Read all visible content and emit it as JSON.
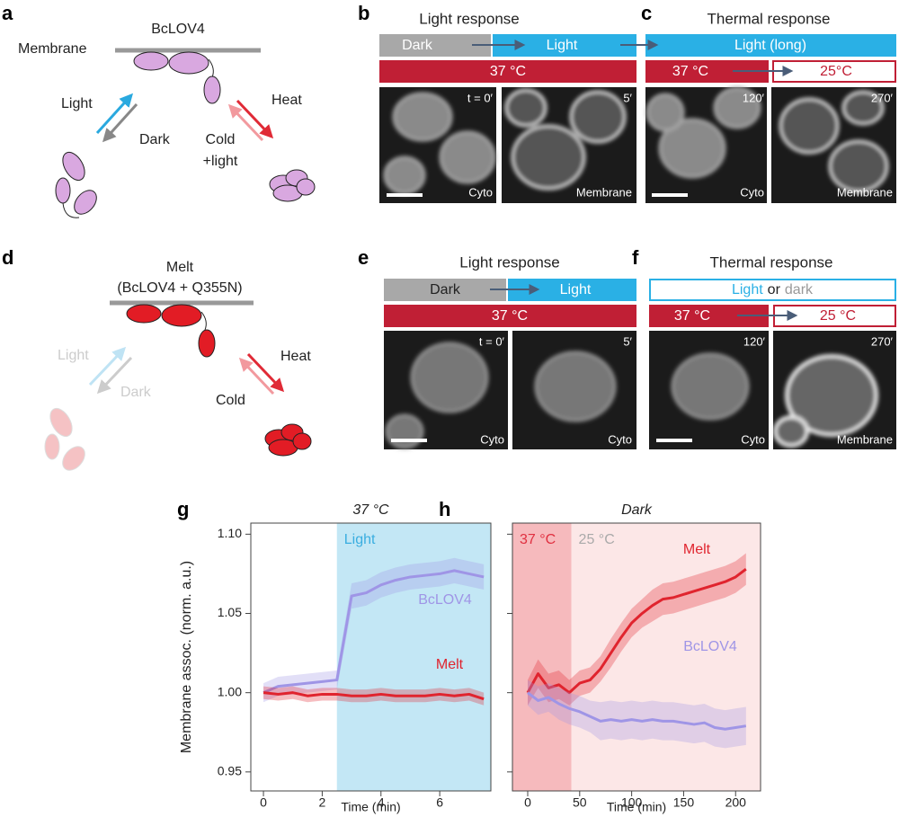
{
  "panels": {
    "a": {
      "label": "a",
      "protein": "BcLOV4",
      "membrane": "Membrane",
      "light": "Light",
      "dark": "Dark",
      "heat": "Heat",
      "cold": "Cold",
      "cold2": "+light"
    },
    "b": {
      "label": "b",
      "title": "Light response",
      "bar1": "Dark",
      "bar2": "Light",
      "temp": "37 °C",
      "t1": "t = 0′",
      "t2": "5′",
      "loc1": "Cyto",
      "loc2": "Membrane"
    },
    "c": {
      "label": "c",
      "title": "Thermal response",
      "bar": "Light (long)",
      "temp1": "37 °C",
      "temp2": "25°C",
      "t1": "120′",
      "t2": "270′",
      "loc1": "Cyto",
      "loc2": "Membrane"
    },
    "d": {
      "label": "d",
      "protein": "Melt",
      "protein2": "(BcLOV4 + Q355N)",
      "light": "Light",
      "dark": "Dark",
      "heat": "Heat",
      "cold": "Cold"
    },
    "e": {
      "label": "e",
      "title": "Light response",
      "bar1": "Dark",
      "bar2": "Light",
      "temp": "37 °C",
      "t1": "t = 0′",
      "t2": "5′",
      "loc1": "Cyto",
      "loc2": "Cyto"
    },
    "f": {
      "label": "f",
      "title": "Thermal response",
      "bar_light": "Light",
      "bar_or": "or",
      "bar_dark": "dark",
      "temp1": "37 °C",
      "temp2": "25 °C",
      "t1": "120′",
      "t2": "270′",
      "loc1": "Cyto",
      "loc2": "Membrane"
    }
  },
  "chart_data": [
    {
      "type": "line",
      "panel": "g",
      "title": "37 °C",
      "ylabel": "Membrane assoc. (norm. a.u.)",
      "xlabel": "Time (min)",
      "x": [
        0,
        0.5,
        1,
        1.5,
        2,
        2.5,
        3,
        3.5,
        4,
        4.5,
        5,
        5.5,
        6,
        6.5,
        7,
        7.5
      ],
      "series": [
        {
          "name": "BcLOV4",
          "color": "#9f95e6",
          "values": [
            1.0,
            1.004,
            1.005,
            1.006,
            1.007,
            1.008,
            1.061,
            1.063,
            1.068,
            1.071,
            1.073,
            1.074,
            1.075,
            1.077,
            1.075,
            1.073
          ],
          "errors": [
            0.006,
            0.006,
            0.006,
            0.006,
            0.006,
            0.006,
            0.008,
            0.008,
            0.008,
            0.008,
            0.008,
            0.008,
            0.008,
            0.008,
            0.008,
            0.008
          ]
        },
        {
          "name": "Melt",
          "color": "#e0242e",
          "values": [
            1.0,
            0.999,
            1.0,
            0.998,
            0.999,
            0.999,
            0.998,
            0.998,
            0.999,
            0.998,
            0.998,
            0.998,
            0.999,
            0.998,
            0.999,
            0.996
          ],
          "errors": [
            0.004,
            0.004,
            0.004,
            0.004,
            0.004,
            0.004,
            0.004,
            0.004,
            0.004,
            0.004,
            0.004,
            0.004,
            0.004,
            0.004,
            0.004,
            0.004
          ]
        }
      ],
      "regions": [
        {
          "name": "Light",
          "from": 2.5,
          "color": "#c3e7f5",
          "label_color": "#3aaee0"
        }
      ],
      "xlim": [
        -0.43,
        7.74
      ],
      "ylim": [
        0.938,
        1.107
      ],
      "xticks": [
        0,
        2,
        4,
        6
      ],
      "yticks": [
        0.95,
        {
          "value": 1.0,
          "label": "1.00"
        },
        1.05,
        {
          "value": 1.1,
          "label": "1.10"
        }
      ],
      "ytick_labels": true
    },
    {
      "type": "line",
      "panel": "h",
      "title": "Dark",
      "xlabel": "Time (min)",
      "x": [
        0,
        10,
        20,
        30,
        40,
        50,
        60,
        70,
        80,
        90,
        100,
        110,
        120,
        130,
        140,
        150,
        160,
        170,
        180,
        190,
        200,
        210
      ],
      "series": [
        {
          "name": "Melt",
          "color": "#e0242e",
          "values": [
            1.0,
            1.012,
            1.003,
            1.005,
            1.0,
            1.006,
            1.008,
            1.015,
            1.025,
            1.035,
            1.044,
            1.05,
            1.055,
            1.059,
            1.06,
            1.062,
            1.064,
            1.066,
            1.068,
            1.07,
            1.073,
            1.078
          ],
          "errors": [
            0.008,
            0.009,
            0.009,
            0.009,
            0.008,
            0.008,
            0.008,
            0.008,
            0.009,
            0.009,
            0.009,
            0.009,
            0.01,
            0.01,
            0.01,
            0.01,
            0.01,
            0.01,
            0.01,
            0.01,
            0.01,
            0.01
          ]
        },
        {
          "name": "BcLOV4",
          "color": "#9f95e6",
          "values": [
            1.0,
            0.995,
            0.997,
            0.993,
            0.99,
            0.988,
            0.985,
            0.982,
            0.983,
            0.982,
            0.983,
            0.982,
            0.983,
            0.982,
            0.982,
            0.981,
            0.98,
            0.981,
            0.978,
            0.977,
            0.978,
            0.979
          ],
          "errors": [
            0.008,
            0.009,
            0.009,
            0.01,
            0.01,
            0.01,
            0.01,
            0.012,
            0.012,
            0.012,
            0.012,
            0.012,
            0.012,
            0.012,
            0.012,
            0.012,
            0.012,
            0.012,
            0.012,
            0.012,
            0.012,
            0.012
          ]
        }
      ],
      "regions": [
        {
          "name": "37 °C",
          "to": 42,
          "color": "#f6babd",
          "label_color": "#e03040"
        },
        {
          "name": "25 °C",
          "from": 42,
          "color": "#fce7e7",
          "label_color": "#aaaaaa"
        }
      ],
      "xlim": [
        -14.7,
        224
      ],
      "ylim": [
        0.938,
        1.107
      ],
      "xticks": [
        0,
        50,
        100,
        150,
        200
      ],
      "yticks": [
        0.95,
        1.0,
        1.05,
        1.1
      ],
      "ytick_labels": false
    }
  ]
}
